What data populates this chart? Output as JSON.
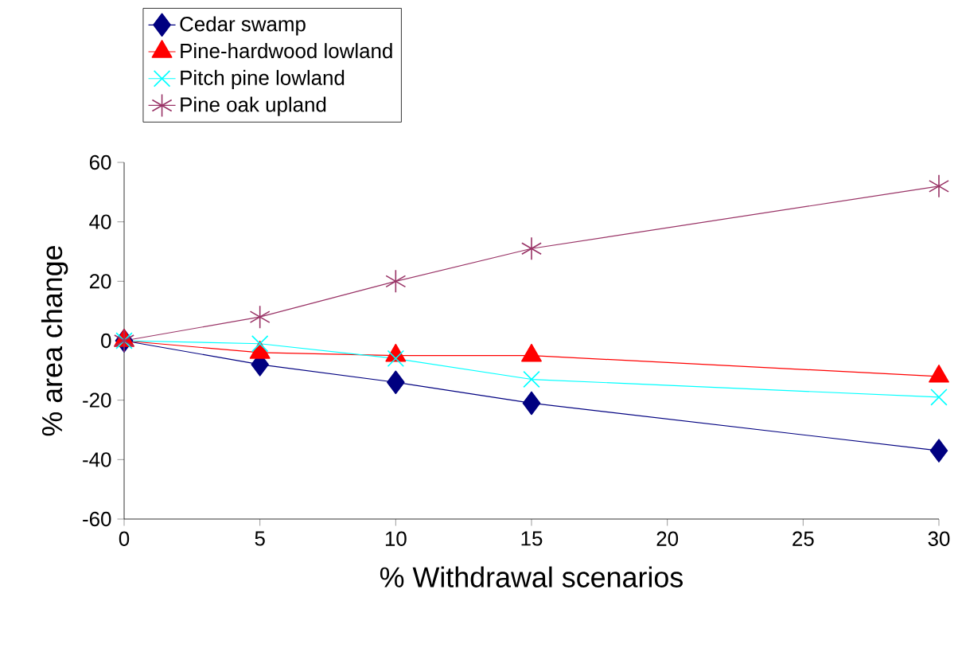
{
  "chart_data": {
    "type": "line",
    "xlabel": "% Withdrawal scenarios",
    "ylabel": "% area change",
    "x": [
      0,
      5,
      10,
      15,
      30
    ],
    "series": [
      {
        "name": "Cedar swamp",
        "color": "#000080",
        "marker": "diamond",
        "values": [
          0,
          -8,
          -14,
          -21,
          -37
        ]
      },
      {
        "name": "Pine-hardwood lowland",
        "color": "#ff0000",
        "marker": "triangle",
        "values": [
          0,
          -4,
          -5,
          -5,
          -12
        ]
      },
      {
        "name": "Pitch pine lowland",
        "color": "#00ffff",
        "marker": "cross",
        "values": [
          0,
          -1,
          -6,
          -13,
          -19
        ]
      },
      {
        "name": "Pine oak upland",
        "color": "#993366",
        "marker": "cross",
        "values": [
          0,
          8,
          20,
          31,
          52
        ]
      }
    ],
    "xlim": [
      0,
      30
    ],
    "xticks": [
      0,
      5,
      10,
      15,
      20,
      25,
      30
    ],
    "ylim": [
      -60,
      60
    ],
    "yticks": [
      -60,
      -40,
      -20,
      0,
      20,
      40,
      60
    ],
    "grid": false,
    "legend": "top left",
    "line_style": "solid"
  }
}
